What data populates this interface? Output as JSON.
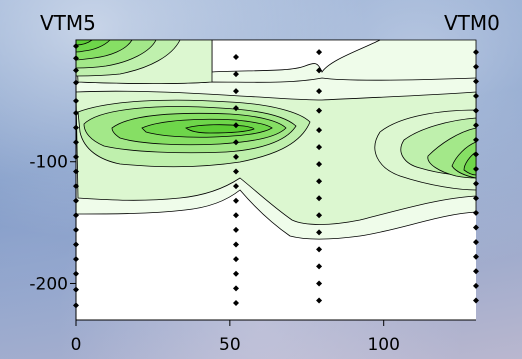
{
  "chart_data": {
    "type": "contour",
    "title": "",
    "xlabel": "",
    "ylabel": "",
    "xlim": [
      0,
      130
    ],
    "ylim": [
      -230,
      0
    ],
    "x_ticks": [
      0,
      50,
      100
    ],
    "y_ticks": [
      -100,
      -200
    ],
    "corner_labels": {
      "left": "VTM5",
      "right": "VTM0"
    },
    "colors": {
      "white": "#ffffff",
      "palest": "#effcea",
      "pale": "#dcf7d0",
      "light": "#bff0ad",
      "mid": "#a3e889",
      "strong": "#86df64",
      "vivid": "#6ed64a"
    },
    "station_x": [
      0,
      52,
      79,
      130
    ],
    "sample_depths": {
      "x0": [
        -5,
        -15,
        -25,
        -35,
        -50,
        -60,
        -72,
        -84,
        -96,
        -108,
        -120,
        -132,
        -144,
        -156,
        -168,
        -180,
        -192,
        -205,
        -218
      ],
      "x52": [
        -14,
        -28,
        -42,
        -56,
        -70,
        -84,
        -96,
        -108,
        -120,
        -132,
        -144,
        -156,
        -168,
        -180,
        -192,
        -204,
        -216
      ],
      "x79": [
        -10,
        -25,
        -42,
        -58,
        -74,
        -88,
        -102,
        -116,
        -130,
        -144,
        -158,
        -172,
        -186,
        -200,
        -214
      ],
      "x130": [
        -10,
        -22,
        -34,
        -46,
        -58,
        -70,
        -82,
        -94,
        -106,
        -118,
        -130,
        -142,
        -154,
        -166,
        -178,
        -190,
        -202,
        -214
      ]
    }
  }
}
